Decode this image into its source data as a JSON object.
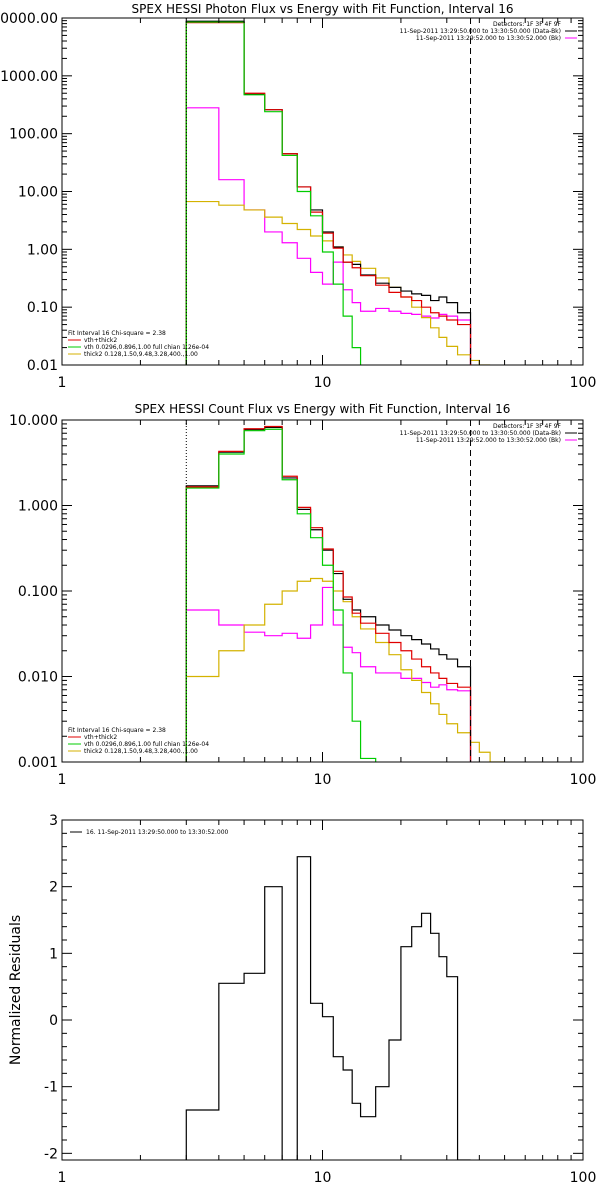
{
  "chart_data": [
    {
      "type": "line",
      "title": "SPEX HESSI Photon Flux vs Energy with Fit Function, Interval 16",
      "x_scale": "log",
      "y_scale": "log",
      "xlim": [
        1,
        100
      ],
      "ylim": [
        0.01,
        10000
      ],
      "x_ticks": [
        1,
        10,
        100
      ],
      "x_tick_labels": [
        "1",
        "10",
        "100"
      ],
      "y_ticks": [
        0.01,
        0.1,
        1,
        10,
        100,
        1000,
        10000
      ],
      "y_tick_labels": [
        "0.01",
        "0.10",
        "1.00",
        "10.00",
        "100.00",
        "1000.00",
        "10000.00"
      ],
      "vlines": [
        {
          "x": 3,
          "style": "dotted",
          "color": "#000000"
        },
        {
          "x": 37,
          "style": "dashed",
          "color": "#000000"
        }
      ],
      "legend_top_right": [
        {
          "text": "Detectors: 1F 3F 4F 9F",
          "color": "#000000"
        },
        {
          "text": "11-Sep-2011 13:29:50.000 to 13:30:50.000 (Data-Bk)",
          "color": "#000000"
        },
        {
          "text": "11-Sep-2011 13:29:52.000 to 13:30:52.000 (Bk)",
          "color": "#ff00ff"
        }
      ],
      "legend_bottom_left": [
        {
          "text": "Fit Interval 16    Chi-square = 2.38",
          "color": "#000000"
        },
        {
          "text": "vth+thick2",
          "color": "#e00000"
        },
        {
          "text": "vth 0.0296,0.896,1.00  full chian 1.26e-04",
          "color": "#00cc00"
        },
        {
          "text": "thick2 0.128,1.50,9.48,3.28,400.,1.00",
          "color": "#d4b200"
        }
      ],
      "series": [
        {
          "color": "#ff00ff",
          "edges": [
            3,
            4,
            5,
            6,
            7,
            8,
            9,
            10,
            11,
            12,
            13,
            14,
            16,
            18,
            20,
            22,
            24,
            26,
            28,
            30,
            33,
            37
          ],
          "values": [
            280,
            16,
            4.8,
            2,
            1.3,
            0.7,
            0.4,
            0.25,
            0.6,
            0.2,
            0.12,
            0.085,
            0.095,
            0.085,
            0.078,
            0.075,
            0.07,
            0.065,
            0.075,
            0.07,
            0.06
          ]
        },
        {
          "color": "#d4b200",
          "edges": [
            3,
            4,
            5,
            6,
            7,
            8,
            9,
            10,
            11,
            12,
            13,
            14,
            16,
            18,
            20,
            22,
            24,
            26,
            28,
            30,
            33,
            37,
            40,
            44
          ],
          "values": [
            6.7,
            5.8,
            4.8,
            3.6,
            2.8,
            2.2,
            1.7,
            1.4,
            1.1,
            0.8,
            0.62,
            0.47,
            0.32,
            0.22,
            0.15,
            0.1,
            0.066,
            0.044,
            0.03,
            0.021,
            0.015,
            0.012,
            0.01
          ]
        },
        {
          "color": "#000000",
          "edges": [
            3,
            4,
            5,
            6,
            7,
            8,
            9,
            10,
            11,
            12,
            13,
            14,
            16,
            18,
            20,
            22,
            24,
            26,
            28,
            30,
            33,
            37
          ],
          "values": [
            8800,
            8800,
            480,
            260,
            45,
            12,
            4.8,
            2,
            1.1,
            0.6,
            0.55,
            0.36,
            0.26,
            0.22,
            0.19,
            0.17,
            0.16,
            0.13,
            0.15,
            0.12,
            0.08
          ]
        },
        {
          "color": "#e00000",
          "edges": [
            3,
            4,
            5,
            6,
            7,
            8,
            9,
            10,
            11,
            12,
            13,
            14,
            16,
            18,
            20,
            22,
            24,
            26,
            28,
            30,
            33,
            37
          ],
          "values": [
            8300,
            8300,
            500,
            260,
            45,
            12,
            4.4,
            1.9,
            1.05,
            0.6,
            0.48,
            0.35,
            0.24,
            0.18,
            0.15,
            0.13,
            0.1,
            0.08,
            0.07,
            0.06,
            0.05
          ]
        },
        {
          "color": "#00cc00",
          "edges": [
            3,
            4,
            5,
            6,
            7,
            8,
            9,
            10,
            11,
            12,
            13,
            14
          ],
          "values": [
            8500,
            8500,
            470,
            240,
            42,
            10,
            3.8,
            0.9,
            0.25,
            0.07,
            0.02
          ]
        }
      ]
    },
    {
      "type": "line",
      "title": "SPEX HESSI Count Flux vs Energy with Fit Function, Interval 16",
      "x_scale": "log",
      "y_scale": "log",
      "xlim": [
        1,
        100
      ],
      "ylim": [
        0.001,
        10
      ],
      "x_ticks": [
        1,
        10,
        100
      ],
      "x_tick_labels": [
        "1",
        "10",
        "100"
      ],
      "y_ticks": [
        0.001,
        0.01,
        0.1,
        1,
        10
      ],
      "y_tick_labels": [
        "0.001",
        "0.010",
        "0.100",
        "1.000",
        "10.000"
      ],
      "vlines": [
        {
          "x": 3,
          "style": "dotted",
          "color": "#000000"
        },
        {
          "x": 37,
          "style": "dashed",
          "color": "#000000"
        }
      ],
      "legend_top_right": [
        {
          "text": "Detectors: 1F 3F 4F 9F",
          "color": "#000000"
        },
        {
          "text": "11-Sep-2011 13:29:50.000 to 13:30:50.000 (Data-Bk)",
          "color": "#000000"
        },
        {
          "text": "11-Sep-2011 13:29:52.000 to 13:30:52.000 (Bk)",
          "color": "#ff00ff"
        }
      ],
      "legend_bottom_left": [
        {
          "text": "Fit Interval 16    Chi-square = 2.38",
          "color": "#000000"
        },
        {
          "text": "vth+thick2",
          "color": "#e00000"
        },
        {
          "text": "vth 0.0296,0.896,1.00  full chian 1.26e-04",
          "color": "#00cc00"
        },
        {
          "text": "thick2 0.128,1.50,9.48,3.28,400.,1.00",
          "color": "#d4b200"
        }
      ],
      "series": [
        {
          "color": "#ff00ff",
          "edges": [
            3,
            4,
            5,
            6,
            7,
            8,
            9,
            10,
            11,
            12,
            13,
            14,
            16,
            18,
            20,
            22,
            24,
            26,
            28,
            30,
            33,
            37
          ],
          "values": [
            0.06,
            0.04,
            0.033,
            0.03,
            0.032,
            0.028,
            0.04,
            0.11,
            0.04,
            0.022,
            0.019,
            0.013,
            0.011,
            0.011,
            0.0095,
            0.0095,
            0.0085,
            0.0075,
            0.008,
            0.007,
            0.0068
          ]
        },
        {
          "color": "#d4b200",
          "edges": [
            3,
            4,
            5,
            6,
            7,
            8,
            9,
            10,
            11,
            12,
            13,
            14,
            16,
            18,
            20,
            22,
            24,
            26,
            28,
            30,
            33,
            37,
            40,
            44,
            50
          ],
          "values": [
            0.01,
            0.02,
            0.04,
            0.07,
            0.1,
            0.13,
            0.14,
            0.13,
            0.1,
            0.075,
            0.05,
            0.036,
            0.025,
            0.018,
            0.012,
            0.009,
            0.0065,
            0.0048,
            0.0036,
            0.0028,
            0.0022,
            0.0017,
            0.0013,
            0.001
          ]
        },
        {
          "color": "#000000",
          "edges": [
            3,
            4,
            5,
            6,
            7,
            8,
            9,
            10,
            11,
            12,
            13,
            14,
            16,
            18,
            20,
            22,
            24,
            26,
            28,
            30,
            33,
            37
          ],
          "values": [
            1.7,
            4.2,
            7.7,
            8.2,
            2.1,
            0.9,
            0.52,
            0.3,
            0.16,
            0.08,
            0.06,
            0.05,
            0.04,
            0.035,
            0.03,
            0.027,
            0.024,
            0.021,
            0.018,
            0.016,
            0.013
          ]
        },
        {
          "color": "#e00000",
          "edges": [
            3,
            4,
            5,
            6,
            7,
            8,
            9,
            10,
            11,
            12,
            13,
            14,
            16,
            18,
            20,
            22,
            24,
            26,
            28,
            30,
            33,
            37
          ],
          "values": [
            1.65,
            4.3,
            7.9,
            8.4,
            2.2,
            0.95,
            0.55,
            0.31,
            0.17,
            0.085,
            0.055,
            0.042,
            0.032,
            0.025,
            0.02,
            0.016,
            0.013,
            0.011,
            0.0095,
            0.0083,
            0.0075
          ]
        },
        {
          "color": "#00cc00",
          "edges": [
            3,
            4,
            5,
            6,
            7,
            8,
            9,
            10,
            11,
            12,
            13,
            14,
            16
          ],
          "values": [
            1.6,
            4,
            7.5,
            7.8,
            2,
            0.8,
            0.42,
            0.2,
            0.06,
            0.011,
            0.003,
            0.0011
          ]
        }
      ]
    },
    {
      "type": "line",
      "title": "",
      "ylabel": "Normalized Residuals",
      "x_scale": "log",
      "y_scale": "linear",
      "xlim": [
        1,
        100
      ],
      "ylim": [
        -2.1,
        3
      ],
      "x_ticks": [
        1,
        10,
        100
      ],
      "x_tick_labels": [
        "1",
        "10",
        "100"
      ],
      "y_ticks": [
        -2,
        -1,
        0,
        1,
        2,
        3
      ],
      "y_tick_labels": [
        "-2",
        "-1",
        "0",
        "1",
        "2",
        "3"
      ],
      "legend_top_left": [
        {
          "text": "16. 11-Sep-2011 13:29:50.000 to 13:30:52.000",
          "color": "#000000"
        }
      ],
      "series": [
        {
          "color": "#000000",
          "edges": [
            3,
            4,
            5,
            6,
            7,
            8,
            9,
            10,
            11,
            12,
            13,
            14,
            16,
            18,
            20,
            22,
            24,
            26,
            28,
            30,
            33,
            37
          ],
          "values": [
            -1.35,
            0.55,
            0.7,
            2,
            -2.1,
            2.45,
            0.25,
            0.05,
            -0.55,
            -0.75,
            -1.25,
            -1.45,
            -1,
            -0.3,
            1.1,
            1.4,
            1.6,
            1.3,
            0.95,
            0.65,
            -2.1
          ]
        }
      ]
    }
  ]
}
